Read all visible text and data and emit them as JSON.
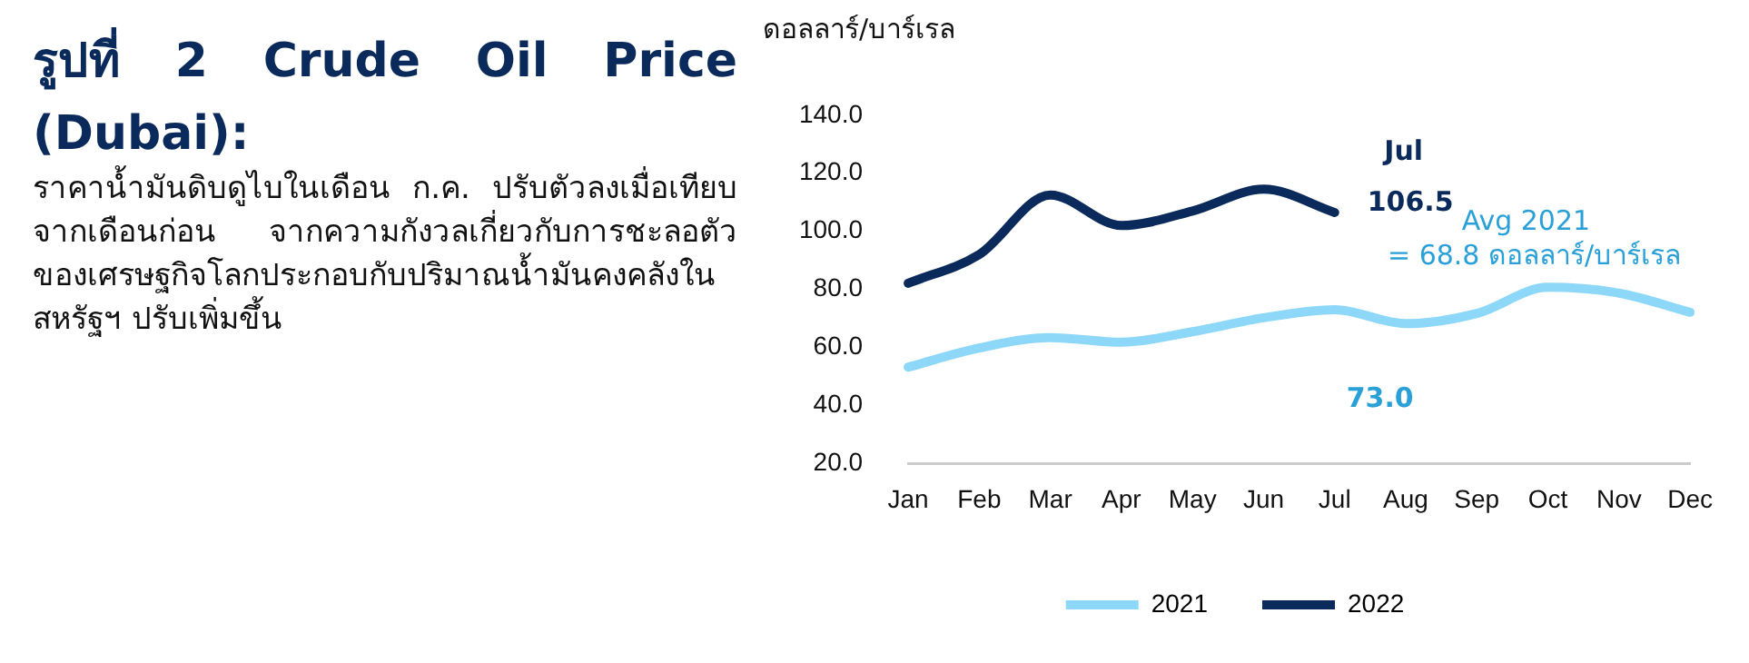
{
  "chart_data": {
    "type": "line",
    "title": "รูปที่ 2 Crude Oil Price (Dubai):",
    "subtitle": "ราคาน้ำมันดิบดูไบในเดือน ก.ค. ปรับตัวลงเมื่อเทียบจากเดือนก่อน จากความกังวลเกี่ยวกับการชะลอตัวของเศรษฐกิจโลกประกอบกับปริมาณน้ำมันคงคลังในสหรัฐฯ ปรับเพิ่มขึ้น",
    "ylabel": "ดอลลาร์/บาร์เรล",
    "categories": [
      "Jan",
      "Feb",
      "Mar",
      "Apr",
      "May",
      "Jun",
      "Jul",
      "Aug",
      "Sep",
      "Oct",
      "Nov",
      "Dec"
    ],
    "series": [
      {
        "name": "2021",
        "color": "#8dd8f8",
        "values": [
          53.2,
          59.8,
          63.4,
          61.8,
          65.4,
          70.2,
          73.0,
          68.2,
          71.7,
          80.7,
          78.7,
          72.1
        ],
        "value_labels": [
          null,
          null,
          null,
          null,
          null,
          null,
          "73.0",
          null,
          null,
          null,
          null,
          null
        ]
      },
      {
        "name": "2022",
        "color": "#0b2a5c",
        "values": [
          82.1,
          92.0,
          112.5,
          102.0,
          107.0,
          114.5,
          106.5,
          null,
          null,
          null,
          null,
          null
        ],
        "value_labels": [
          null,
          null,
          null,
          null,
          null,
          null,
          "106.5",
          null,
          null,
          null,
          null,
          null
        ]
      }
    ],
    "annotations": [
      {
        "text": "Jul",
        "x": "Jul",
        "y": 106.5
      },
      "Avg 2021\n= 68.8 ดอลลาร์/บาร์เรล"
    ],
    "ylim": [
      20,
      140
    ],
    "yticks": [
      {
        "value": 20,
        "label": "20.0"
      },
      {
        "value": 40,
        "label": "40.0"
      },
      {
        "value": 60,
        "label": "60.0"
      },
      {
        "value": 80,
        "label": "80.0"
      },
      {
        "value": 100,
        "label": "100.0"
      },
      {
        "value": 120,
        "label": "120.0"
      },
      {
        "value": 140,
        "label": "140.0"
      }
    ],
    "grid": false,
    "legend": "bottom",
    "marker": "none",
    "line_style": "solid"
  }
}
